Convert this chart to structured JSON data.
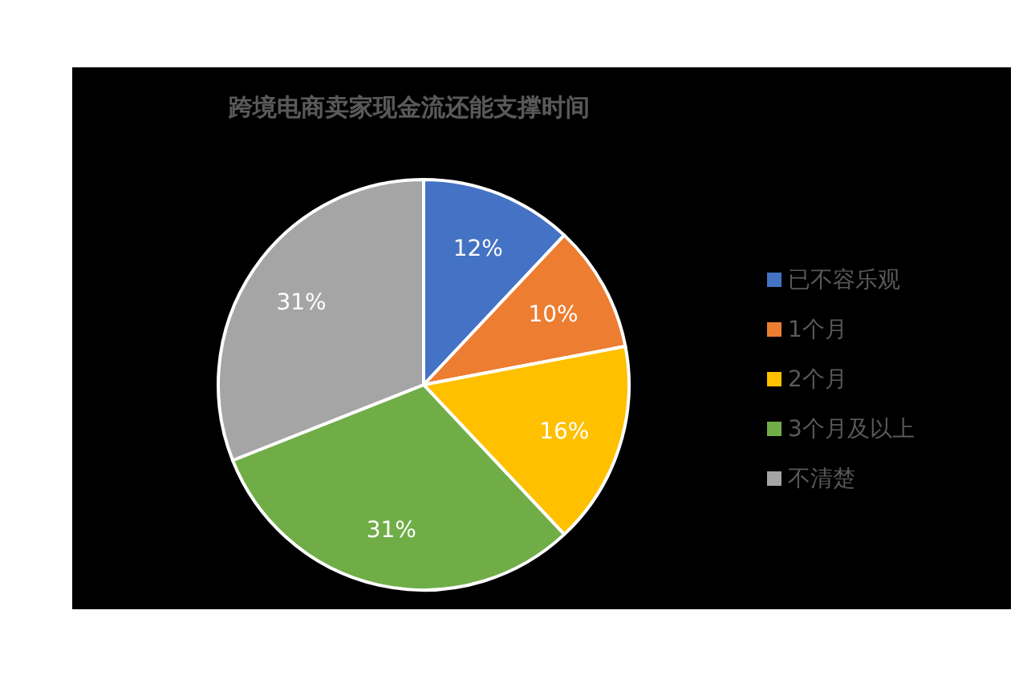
{
  "chart_data": {
    "type": "pie",
    "title": "跨境电商卖家现金流还能支撑时间",
    "categories": [
      "已不容乐观",
      "1个月",
      "2个月",
      "3个月及以上",
      "不清楚"
    ],
    "values": [
      12,
      10,
      16,
      31,
      31
    ],
    "colors": [
      "#4472c4",
      "#ed7d31",
      "#ffc000",
      "#70ad47",
      "#a5a5a5"
    ],
    "value_labels": [
      "12%",
      "10%",
      "16%",
      "31%",
      "31%"
    ],
    "legend": "right"
  }
}
